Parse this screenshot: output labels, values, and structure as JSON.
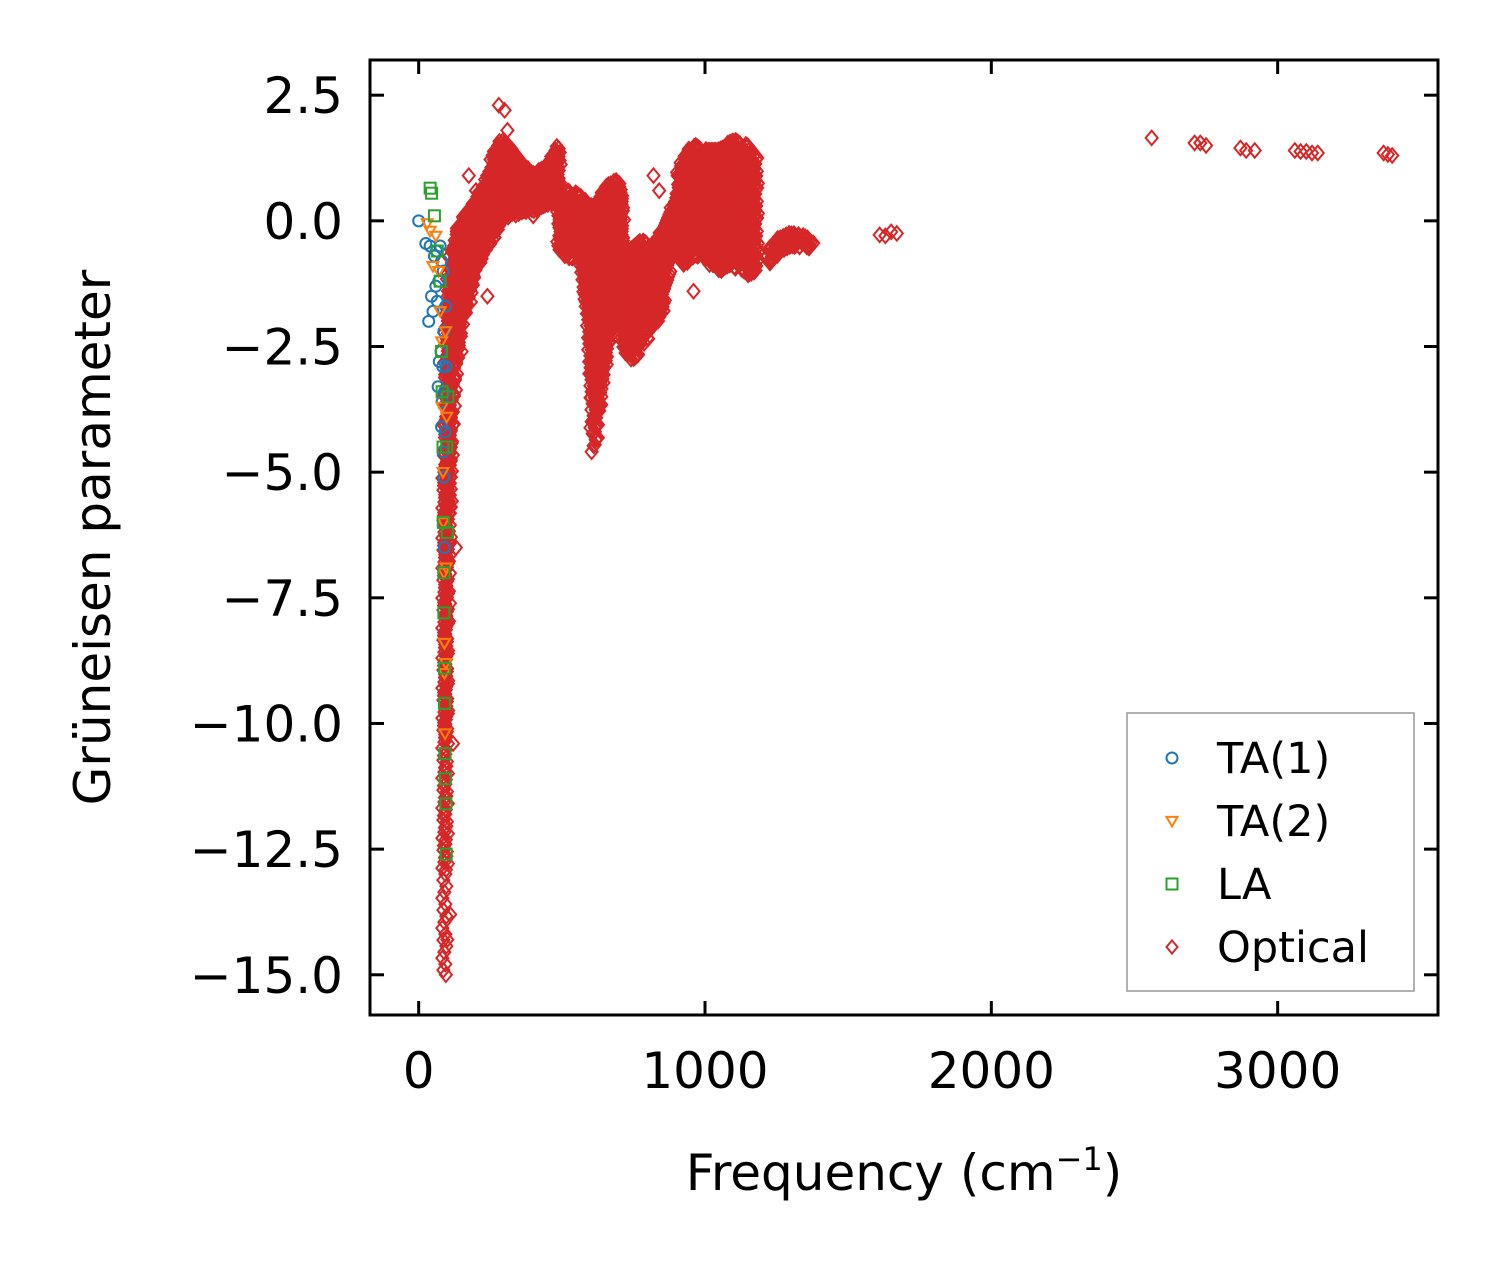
{
  "chart_data": {
    "type": "scatter",
    "title": "",
    "xlabel": "Frequency (cm",
    "xlabel_sup": "−1",
    "xlabel_suffix": ")",
    "ylabel": "Grüneisen parameter",
    "xlim": [
      -170,
      3560
    ],
    "ylim": [
      -15.8,
      3.2
    ],
    "xticks": [
      0,
      1000,
      2000,
      3000
    ],
    "xtick_labels": [
      "0",
      "1000",
      "2000",
      "3000"
    ],
    "yticks": [
      2.5,
      0.0,
      -2.5,
      -5.0,
      -7.5,
      -10.0,
      -12.5,
      -15.0
    ],
    "ytick_labels": [
      "2.5",
      "0.0",
      "−2.5",
      "−5.0",
      "−7.5",
      "−10.0",
      "−12.5",
      "−15.0"
    ],
    "grid": false,
    "legend_position": "lower-right",
    "series": [
      {
        "name": "TA(1)",
        "marker": "circle",
        "color": "#1f77b4",
        "x": [
          0,
          25,
          35,
          40,
          45,
          50,
          55,
          60,
          62,
          65,
          68,
          70,
          72,
          75,
          78,
          80,
          80,
          82,
          84,
          85,
          86,
          88,
          88,
          90,
          90,
          92,
          94,
          95
        ],
        "y": [
          0.0,
          -0.45,
          -2.0,
          -0.5,
          -1.5,
          -1.8,
          -0.7,
          -1.3,
          -0.6,
          -1.6,
          -3.3,
          -1.2,
          -2.8,
          -0.5,
          -2.6,
          -4.1,
          -0.8,
          -3.6,
          -2.9,
          -4.6,
          -1.0,
          -5.1,
          -2.2,
          -3.4,
          -6.5,
          -4.2,
          -1.7,
          -2.9
        ]
      },
      {
        "name": "TA(2)",
        "marker": "triangle-down",
        "color": "#ff7f0e",
        "x": [
          30,
          40,
          50,
          60,
          70,
          75,
          80,
          82,
          85,
          86,
          88,
          90,
          90,
          92,
          94,
          95,
          96,
          98
        ],
        "y": [
          -0.05,
          -0.2,
          -0.9,
          -0.3,
          -1.0,
          -1.8,
          -2.4,
          -3.7,
          -5.0,
          -6.0,
          -7.0,
          -8.4,
          -9.0,
          -10.2,
          -2.2,
          -8.8,
          -6.9,
          -3.9
        ]
      },
      {
        "name": "LA",
        "marker": "square",
        "color": "#2ca02c",
        "x": [
          40,
          45,
          55,
          65,
          75,
          80,
          82,
          85,
          86,
          88,
          88,
          90,
          90,
          92,
          93,
          95,
          96,
          98,
          100,
          102
        ],
        "y": [
          0.65,
          0.55,
          0.1,
          -0.6,
          -1.2,
          -2.6,
          -3.4,
          -4.5,
          -6.0,
          -7.0,
          -7.8,
          -8.9,
          -9.6,
          -10.6,
          -11.1,
          -11.6,
          -12.6,
          -4.5,
          -6.2,
          -3.5
        ]
      },
      {
        "name": "Optical",
        "marker": "diamond",
        "color": "#d62728",
        "envelopes": [
          {
            "x": [
              88,
              90,
              92,
              95,
              98,
              100,
              105,
              110,
              115,
              120,
              130,
              150,
              175,
              200,
              230,
              260,
              290,
              320,
              360,
              400,
              450,
              490
            ],
            "ymax": [
              -5,
              -4,
              -3,
              -2,
              -1.6,
              -1.4,
              -1.1,
              -0.8,
              -0.6,
              -0.5,
              -0.3,
              0.0,
              0.2,
              0.4,
              0.7,
              1.3,
              1.6,
              1.4,
              1.1,
              0.9,
              1.1,
              1.5
            ],
            "ymin": [
              -15,
              -14.2,
              -13,
              -11,
              -9,
              -8,
              -6.5,
              -5.2,
              -4.2,
              -3.5,
              -2.8,
              -2.1,
              -1.6,
              -1.0,
              -0.6,
              -0.3,
              0.0,
              0.1,
              0.15,
              0.2,
              0.3,
              0.3
            ]
          },
          {
            "x": [
              490,
              520,
              560,
              590,
              610,
              630,
              660,
              690,
              710
            ],
            "ymax": [
              0.3,
              0.6,
              0.5,
              0.3,
              0.3,
              0.4,
              0.7,
              0.8,
              0.5
            ],
            "ymin": [
              -0.5,
              -0.8,
              -0.6,
              -2.0,
              -4.7,
              -3.8,
              -2.5,
              -1.5,
              -1.2
            ]
          },
          {
            "x": [
              710,
              740,
              780,
              820,
              850,
              880,
              910
            ],
            "ymax": [
              -0.6,
              -0.6,
              -0.4,
              -0.5,
              -0.2,
              0.2,
              0.5
            ],
            "ymin": [
              -2.5,
              -2.8,
              -2.5,
              -2.1,
              -1.8,
              -0.7,
              0.2
            ]
          },
          {
            "x": [
              905,
              930,
              960,
              1000,
              1050,
              1100,
              1140,
              1180
            ],
            "ymax": [
              0.9,
              1.3,
              1.5,
              1.4,
              1.4,
              1.6,
              1.5,
              1.2
            ],
            "ymin": [
              -0.8,
              -0.9,
              -0.7,
              -0.8,
              -1.0,
              -0.9,
              -1.1,
              -1.0
            ]
          },
          {
            "x": [
              1220,
              1260,
              1300,
              1340,
              1370
            ],
            "ymax": [
              -0.6,
              -0.35,
              -0.25,
              -0.3,
              -0.45
            ],
            "ymin": [
              -0.9,
              -0.7,
              -0.55,
              -0.5,
              -0.55
            ]
          }
        ],
        "scatter_x": [
          95,
          100,
          110,
          120,
          130,
          150,
          175,
          200,
          240,
          280,
          300,
          310,
          350,
          400,
          560,
          650,
          820,
          840,
          960,
          2560,
          2710,
          2730,
          2750,
          2870,
          2890,
          2920,
          3060,
          3080,
          3100,
          3120,
          3140,
          3370,
          3385,
          3400,
          1610,
          1630,
          1650,
          1670
        ],
        "scatter_y": [
          -15.0,
          -14.3,
          -13.8,
          -10.4,
          -6.5,
          -2.6,
          0.9,
          0.6,
          -1.5,
          2.3,
          2.2,
          1.8,
          0.4,
          0.1,
          0.2,
          -0.6,
          0.9,
          0.6,
          -1.4,
          1.65,
          1.55,
          1.55,
          1.5,
          1.45,
          1.4,
          1.4,
          1.4,
          1.38,
          1.38,
          1.35,
          1.35,
          1.35,
          1.32,
          1.3,
          -0.28,
          -0.3,
          -0.22,
          -0.25
        ]
      }
    ]
  }
}
